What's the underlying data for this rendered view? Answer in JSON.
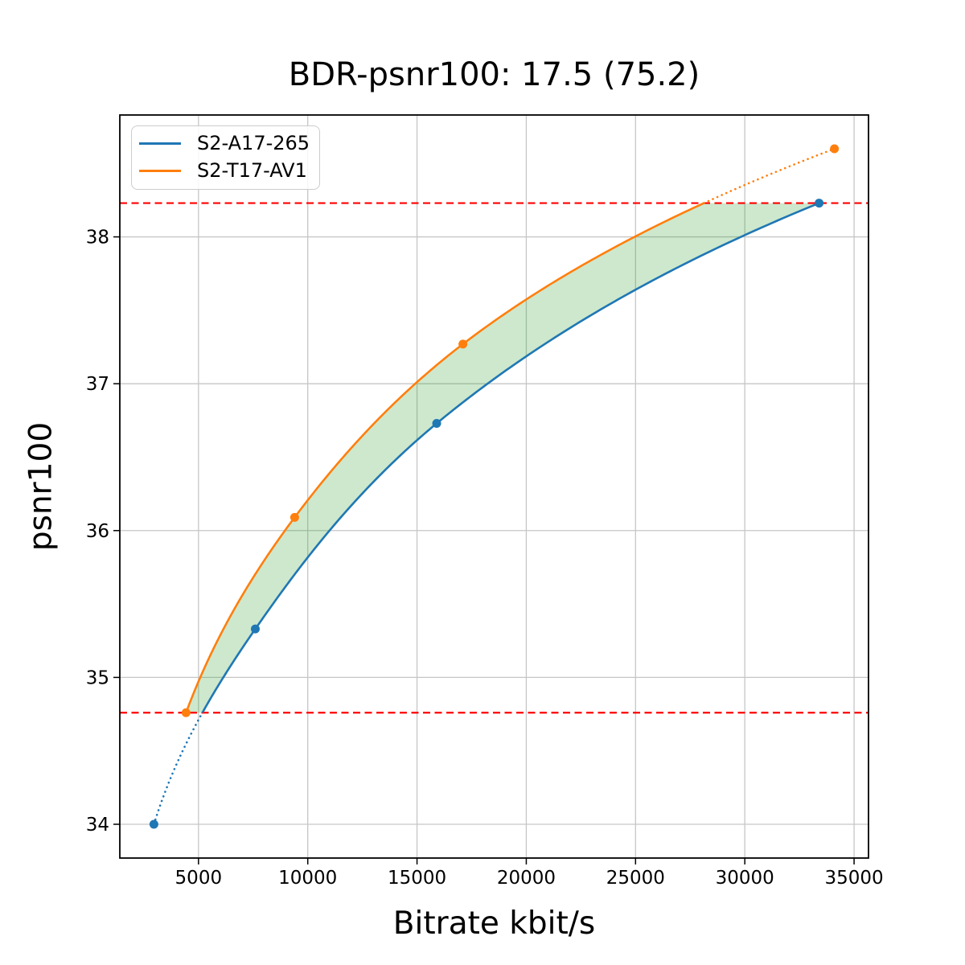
{
  "chart_data": {
    "type": "line",
    "title": "BDR-psnr100: 17.5 (75.2)",
    "xlabel": "Bitrate kbit/s",
    "ylabel": "psnr100",
    "xlim": [
      1400,
      35660
    ],
    "ylim": [
      33.77,
      38.83
    ],
    "x_ticks": [
      5000,
      10000,
      15000,
      20000,
      25000,
      30000,
      35000
    ],
    "y_ticks": [
      34,
      35,
      36,
      37,
      38
    ],
    "grid": true,
    "grid_color": "#c6c6c6",
    "legend_position": "upper-left",
    "series": [
      {
        "name": "S2-A17-265",
        "color": "#1f77b4",
        "marker": "circle",
        "points": [
          [
            2960,
            34.0
          ],
          [
            7600,
            35.33
          ],
          [
            15900,
            36.73
          ],
          [
            33400,
            38.23
          ]
        ]
      },
      {
        "name": "S2-T17-AV1",
        "color": "#ff7f0e",
        "marker": "circle",
        "points": [
          [
            4430,
            34.76
          ],
          [
            9400,
            36.09
          ],
          [
            17100,
            37.27
          ],
          [
            34100,
            38.6
          ]
        ]
      }
    ],
    "overlap_band": {
      "low": 34.76,
      "high": 38.23,
      "line_color": "#ff0000",
      "line_style": "dashed",
      "fill_color": "#2ca02c",
      "fill_opacity": 0.24
    }
  }
}
